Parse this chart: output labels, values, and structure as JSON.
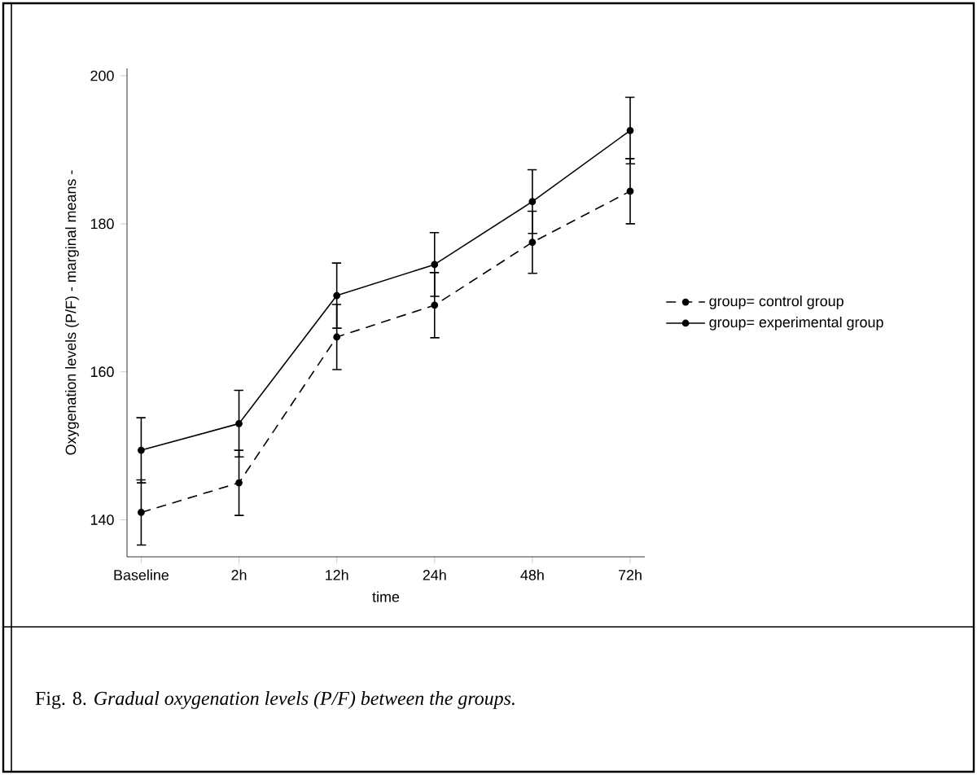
{
  "chart_data": {
    "type": "line",
    "xlabel": "time",
    "ylabel": "Oxygenation levels (P/F) - marginal means -",
    "categories": [
      "Baseline",
      "2h",
      "12h",
      "24h",
      "48h",
      "72h"
    ],
    "series": [
      {
        "name": "group= control group",
        "color": "#000000",
        "line_style": "dashed",
        "values": [
          141,
          145,
          164.7,
          169,
          177.5,
          184.4
        ],
        "errors": [
          4.4,
          4.4,
          4.4,
          4.4,
          4.2,
          4.4
        ]
      },
      {
        "name": "group= experimental group",
        "color": "#000000",
        "line_style": "solid",
        "values": [
          149.4,
          153,
          170.3,
          174.5,
          183,
          192.6
        ],
        "errors": [
          4.4,
          4.5,
          4.4,
          4.3,
          4.3,
          4.5
        ]
      }
    ],
    "ylim": [
      135,
      201
    ],
    "yticks": [
      140,
      160,
      180,
      200
    ],
    "marker": "circle",
    "legend": "right",
    "grid": false,
    "annotations": [
      "Fig. 8. *Gradual oxygenation levels (P/F) between the groups.*"
    ]
  }
}
